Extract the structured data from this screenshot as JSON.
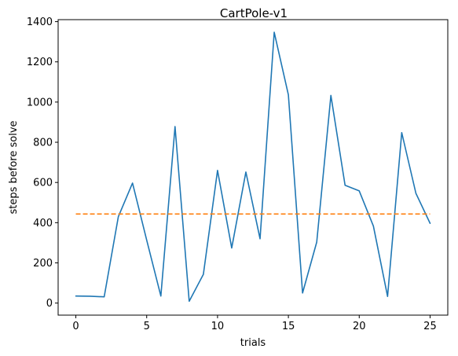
{
  "chart_data": {
    "type": "line",
    "title": "CartPole-v1",
    "xlabel": "trials",
    "ylabel": "steps before solve",
    "xlim": [
      -1.25,
      26.25
    ],
    "ylim": [
      -60,
      1410
    ],
    "xticks": [
      0,
      5,
      10,
      15,
      20,
      25
    ],
    "yticks": [
      0,
      200,
      400,
      600,
      800,
      1000,
      1200,
      1400
    ],
    "grid": false,
    "legend": "none",
    "series": [
      {
        "style": "solid",
        "color": "#1f77b4",
        "x": [
          0,
          1,
          2,
          3,
          4,
          5,
          6,
          7,
          8,
          9,
          10,
          11,
          12,
          13,
          14,
          15,
          16,
          17,
          18,
          19,
          20,
          21,
          22,
          23,
          24,
          25
        ],
        "y": [
          35,
          34,
          31,
          430,
          597,
          313,
          35,
          878,
          9,
          143,
          660,
          274,
          652,
          320,
          1347,
          1036,
          50,
          303,
          1033,
          586,
          558,
          383,
          33,
          848,
          546,
          397
        ]
      },
      {
        "style": "dashed",
        "color": "#ff7f0e",
        "x": [
          0,
          25
        ],
        "y": [
          443,
          443
        ]
      }
    ]
  }
}
